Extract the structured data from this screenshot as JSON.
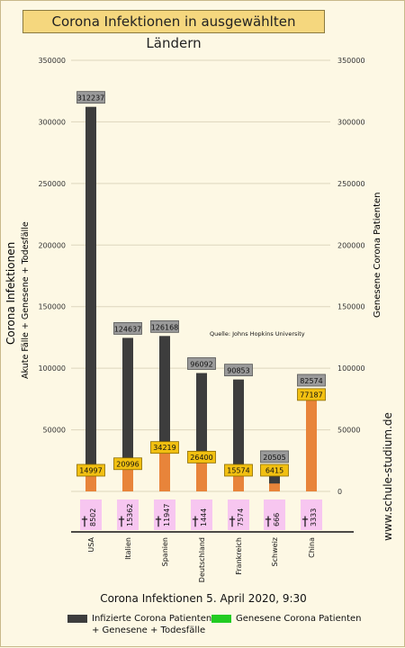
{
  "title": "Corona Infektionen in ausgewählten Ländern",
  "caption": "Corona Infektionen 5. April 2020, 9:30",
  "source": "Quelle: Johns Hopkins University",
  "watermark": "www.schule-studium.de",
  "colors": {
    "infected": "#3d3d3d",
    "recovered_bar": "#e8843a",
    "recovered_legend": "#22cc22",
    "deaths_box": "#f7c6f0",
    "label_box": "#9a9a9a",
    "recovered_box": "#f2c011",
    "background": "#fdf8e4"
  },
  "legend": {
    "infected_line1": "Infizierte Corona Patienten",
    "infected_line2": "+ Genesene + Todesfälle",
    "recovered": "Genesene Corona Patienten"
  },
  "chart_data": {
    "type": "bar",
    "title": "Corona Infektionen in ausgewählten Ländern",
    "categories": [
      "USA",
      "Italien",
      "Spanien",
      "Deutschland",
      "Frankreich",
      "Schweiz",
      "China"
    ],
    "series": [
      {
        "name": "Infizierte Corona Patienten + Genesene + Todesfälle",
        "values": [
          312237,
          124637,
          126168,
          96092,
          90853,
          20505,
          82574
        ]
      },
      {
        "name": "Genesene Corona Patienten",
        "values": [
          14997,
          20996,
          34219,
          26400,
          15574,
          6415,
          77187
        ]
      }
    ],
    "deaths": [
      8502,
      15362,
      11947,
      1444,
      7574,
      666,
      3333
    ],
    "ylabel_left": "Corona Infektionen",
    "ylabel_left_sub": "Akute Fälle + Genesene + Todesfälle",
    "ylabel_right": "Genesene Corona Patienten",
    "ylim": [
      0,
      350000
    ],
    "yticks": [
      0,
      50000,
      100000,
      150000,
      200000,
      250000,
      300000,
      350000
    ],
    "grid": true
  }
}
